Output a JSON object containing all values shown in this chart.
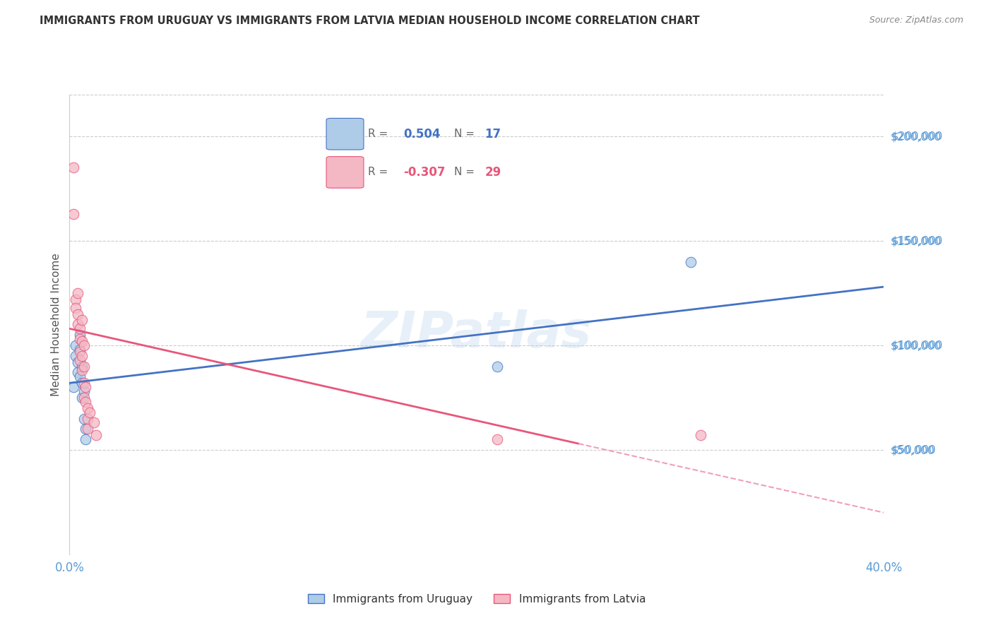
{
  "title": "IMMIGRANTS FROM URUGUAY VS IMMIGRANTS FROM LATVIA MEDIAN HOUSEHOLD INCOME CORRELATION CHART",
  "source": "Source: ZipAtlas.com",
  "ylabel": "Median Household Income",
  "yticks": [
    0,
    50000,
    100000,
    150000,
    200000
  ],
  "xlim": [
    0.0,
    0.4
  ],
  "ylim": [
    0,
    220000
  ],
  "watermark": "ZIPatlas",
  "legend_r_uruguay": "0.504",
  "legend_n_uruguay": "17",
  "legend_r_latvia": "-0.307",
  "legend_n_latvia": "29",
  "uruguay_color": "#aecce8",
  "latvia_color": "#f4b8c5",
  "uruguay_line_color": "#4472C4",
  "latvia_line_color": "#E8567A",
  "latvia_line_dashed_color": "#f0a0b8",
  "title_color": "#333333",
  "ytick_color": "#5b9bd5",
  "xtick_color": "#5b9bd5",
  "grid_color": "#cccccc",
  "uruguay_x": [
    0.002,
    0.003,
    0.003,
    0.004,
    0.004,
    0.005,
    0.005,
    0.005,
    0.006,
    0.006,
    0.006,
    0.007,
    0.007,
    0.008,
    0.008,
    0.21,
    0.305
  ],
  "uruguay_y": [
    80000,
    100000,
    95000,
    92000,
    87000,
    105000,
    98000,
    85000,
    82000,
    90000,
    75000,
    78000,
    65000,
    60000,
    55000,
    90000,
    140000
  ],
  "latvia_x": [
    0.002,
    0.002,
    0.003,
    0.003,
    0.004,
    0.004,
    0.004,
    0.005,
    0.005,
    0.005,
    0.005,
    0.006,
    0.006,
    0.006,
    0.006,
    0.007,
    0.007,
    0.007,
    0.007,
    0.008,
    0.008,
    0.009,
    0.009,
    0.009,
    0.01,
    0.012,
    0.013,
    0.21,
    0.31
  ],
  "latvia_y": [
    185000,
    163000,
    122000,
    118000,
    125000,
    115000,
    110000,
    108000,
    103000,
    97000,
    93000,
    112000,
    102000,
    95000,
    88000,
    100000,
    90000,
    82000,
    75000,
    80000,
    73000,
    70000,
    65000,
    60000,
    68000,
    63000,
    57000,
    55000,
    57000
  ],
  "blue_line_x0": 0.0,
  "blue_line_y0": 82000,
  "blue_line_x1": 0.4,
  "blue_line_y1": 128000,
  "pink_line_solid_x0": 0.0,
  "pink_line_solid_y0": 108000,
  "pink_line_solid_x1": 0.25,
  "pink_line_solid_y1": 53000,
  "pink_line_dashed_x0": 0.25,
  "pink_line_dashed_y0": 53000,
  "pink_line_dashed_x1": 0.4,
  "pink_line_dashed_y1": 20000
}
